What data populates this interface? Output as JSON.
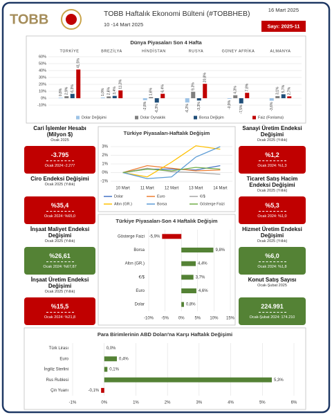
{
  "header": {
    "logo": "TOBB",
    "title": "TOBB Haftalık Ekonomi Bülteni (#TOBBHEB)",
    "period": "10 -14 Mart 2025",
    "date": "16 Mart 2025",
    "issue": "Sayı: 2025-11"
  },
  "chart_data": [
    {
      "type": "bar",
      "title": "Dünya Piyasaları Son 4 Hafta",
      "categories": [
        "TÜRKİYE",
        "BREZİLYA",
        "HİNDİSTAN",
        "RUSYA",
        "GÜNEY AFRİKA",
        "ALMANYA"
      ],
      "series": [
        {
          "name": "Dolar Değişimi",
          "color": "#9dc3e6",
          "values": [
            0.8,
            1.0,
            -2.8,
            -6.2,
            -0.9,
            -3.6
          ],
          "value_labels": [
            "0,8%",
            "1,0%",
            "-2,8%",
            "-6,2%",
            "-0,9%",
            "-3,6%"
          ]
        },
        {
          "name": "Dolar Oynaklık",
          "color": "#7f7f7f",
          "values": [
            2.9,
            2.6,
            1.6,
            9.3,
            4.3,
            3.1
          ],
          "value_labels": [
            "2,9%",
            "2,6%",
            "1,6%",
            "9,3%",
            "4,3%",
            "3,1%"
          ]
        },
        {
          "name": "Borsa Değişim",
          "color": "#1f4e79",
          "values": [
            6.3,
            3.4,
            -6.3,
            -3.3,
            -7.5,
            5.7
          ],
          "value_labels": [
            "6,3%",
            "3,4%",
            "-6,3%",
            "-3,3%",
            "-7,5%",
            "5,7%"
          ]
        },
        {
          "name": "Faiz (Fonlama)",
          "color": "#c00000",
          "values": [
            41.5,
            11.3,
            6.4,
            20.8,
            7.8,
            2.7
          ],
          "value_labels": [
            "41,5%",
            "11,3%",
            "6,4%",
            "20,8%",
            "7,8%",
            "2,7%"
          ]
        }
      ],
      "ylim": [
        -10,
        60
      ],
      "yticks": [
        {
          "value": -10,
          "label": "-10%"
        },
        {
          "value": 0,
          "label": "0%"
        },
        {
          "value": 10,
          "label": "10%"
        },
        {
          "value": 20,
          "label": "20%"
        },
        {
          "value": 30,
          "label": "30%"
        },
        {
          "value": 40,
          "label": "40%"
        },
        {
          "value": 50,
          "label": "50%"
        },
        {
          "value": 60,
          "label": "60%"
        }
      ],
      "grid": true,
      "legend": "bottom"
    },
    {
      "type": "line",
      "title": "Türkiye Piyasaları-Haftalık Değişim",
      "categories": [
        "10 Mart",
        "11 Mart",
        "12 Mart",
        "13 Mart",
        "14 Mart"
      ],
      "series": [
        {
          "name": "Dolar",
          "color": "#4472c4",
          "values": [
            0,
            0.4,
            0.4,
            0.3,
            0.8
          ]
        },
        {
          "name": "Euro",
          "color": "#ed7d31",
          "values": [
            0,
            0.8,
            0.5,
            0.2,
            0.3
          ]
        },
        {
          "name": "€/$",
          "color": "#a5a5a5",
          "values": [
            0,
            0.5,
            0.1,
            0.0,
            -0.2
          ]
        },
        {
          "name": "Altın (GR.)",
          "color": "#ffc000",
          "values": [
            0,
            -0.5,
            1.2,
            3.1,
            2.7
          ]
        },
        {
          "name": "Borsa",
          "color": "#5b9bd5",
          "values": [
            0,
            -0.7,
            -0.5,
            1.8,
            3.0
          ]
        },
        {
          "name": "Gösterge Faizi",
          "color": "#70ad47",
          "values": [
            0,
            0.4,
            0.2,
            0.6,
            0.4
          ]
        }
      ],
      "ylim": [
        -1,
        3
      ],
      "yticks": [
        {
          "value": -1,
          "label": "-1%"
        },
        {
          "value": 0,
          "label": "0%"
        },
        {
          "value": 1,
          "label": "1%"
        },
        {
          "value": 2,
          "label": "2%"
        },
        {
          "value": 3,
          "label": "3%"
        }
      ],
      "grid": true,
      "legend": "bottom"
    },
    {
      "type": "bar",
      "orientation": "horizontal",
      "title": "Türkiye Piyasaları-Son 4 Haftalık Değişim",
      "categories": [
        "Gösterge Faizi",
        "Borsa",
        "Altın (GR.)",
        "€/$",
        "Euro",
        "Dolar"
      ],
      "values": [
        -5.9,
        9.8,
        4.4,
        3.7,
        4.6,
        0.8
      ],
      "value_labels": [
        "-5,9%",
        "9,8%",
        "4,4%",
        "3,7%",
        "4,6%",
        "0,8%"
      ],
      "colors": [
        "#c00000",
        "#548235",
        "#548235",
        "#548235",
        "#548235",
        "#548235"
      ],
      "xlim": [
        -10,
        15
      ],
      "xticks": [
        {
          "value": -10,
          "label": "-10%"
        },
        {
          "value": -5,
          "label": "-5%"
        },
        {
          "value": 0,
          "label": "0%"
        },
        {
          "value": 5,
          "label": "5%"
        },
        {
          "value": 10,
          "label": "10%"
        },
        {
          "value": 15,
          "label": "15%"
        }
      ],
      "grid": true
    },
    {
      "type": "bar",
      "orientation": "horizontal",
      "title": "Para Birimlerinin ABD Doları'na Karşı Haftalık Değişimi",
      "categories": [
        "Türk Lirası",
        "Euro",
        "İngiliz Sterlini",
        "Rus Rublesi",
        "Çin Yuanı"
      ],
      "values": [
        0.0,
        0.4,
        0.1,
        5.3,
        -0.1
      ],
      "value_labels": [
        "0,0%",
        "0,4%",
        "0,1%",
        "5,3%",
        "-0,1%"
      ],
      "colors": [
        "#548235",
        "#548235",
        "#548235",
        "#548235",
        "#c00000"
      ],
      "xlim": [
        -1,
        6
      ],
      "xticks": [
        {
          "value": -1,
          "label": "-1%"
        },
        {
          "value": 0,
          "label": "0%"
        },
        {
          "value": 1,
          "label": "1%"
        },
        {
          "value": 2,
          "label": "2%"
        },
        {
          "value": 3,
          "label": "3%"
        },
        {
          "value": 4,
          "label": "4%"
        },
        {
          "value": 5,
          "label": "5%"
        },
        {
          "value": 6,
          "label": "6%"
        }
      ],
      "grid": true
    }
  ],
  "left_panel": [
    {
      "title": "Cari İşlemler Hesabı (Milyon $)",
      "period": "Ocak 2025",
      "value": "-3.795",
      "previous": "Ocak 2024:-2.277",
      "color": "#c00000"
    },
    {
      "title": "Ciro Endeksi Değişimi",
      "period": "Ocak 2025 (Yıllık)",
      "value": "%35,4",
      "previous": "Ocak 2024: %65,0",
      "color": "#c00000"
    },
    {
      "title": "İnşaat Maliyet Endeksi Değişimi",
      "period": "Ocak 2025 (Yıllık)",
      "value": "%26,61",
      "previous": "Ocak 2024: %67,87",
      "color": "#548235"
    },
    {
      "title": "İnşaat Üretim Endeksi Değişimi",
      "period": "Ocak 2025 (Yıllık)",
      "value": "%15,5",
      "previous": "Ocak 2024: %21,8",
      "color": "#c00000"
    }
  ],
  "right_panel": [
    {
      "title": "Sanayi Üretim Endeksi Değişimi",
      "period": "Ocak 2025 (Yıllık)",
      "value": "%1,2",
      "previous": "Ocak 2024: %1,3",
      "color": "#c00000"
    },
    {
      "title": "Ticaret Satış Hacim Endeksi Değişimi",
      "period": "Ocak 2025 (Yıllık)",
      "value": "%5,3",
      "previous": "Ocak 2024: %1,0",
      "color": "#c00000"
    },
    {
      "title": "Hizmet Üretim Endeksi Değişimi",
      "period": "Ocak 2025 (Yıllık)",
      "value": "%6,0",
      "previous": "Ocak 2024: %1,8",
      "color": "#548235"
    },
    {
      "title": "Konut Satış Sayısı",
      "period": "Ocak-Şubat 2025",
      "value": "224.991",
      "previous": "Ocak-Şubat 2024: 174.210",
      "color": "#548235"
    }
  ]
}
